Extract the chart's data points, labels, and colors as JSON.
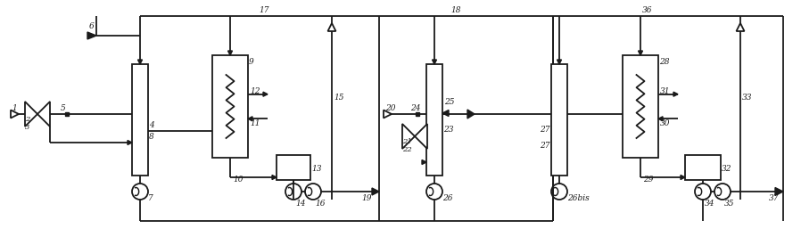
{
  "background": "#ffffff",
  "lc": "#1a1a1a",
  "lw": 1.3,
  "fig_w": 8.98,
  "fig_h": 2.66,
  "dpi": 100
}
